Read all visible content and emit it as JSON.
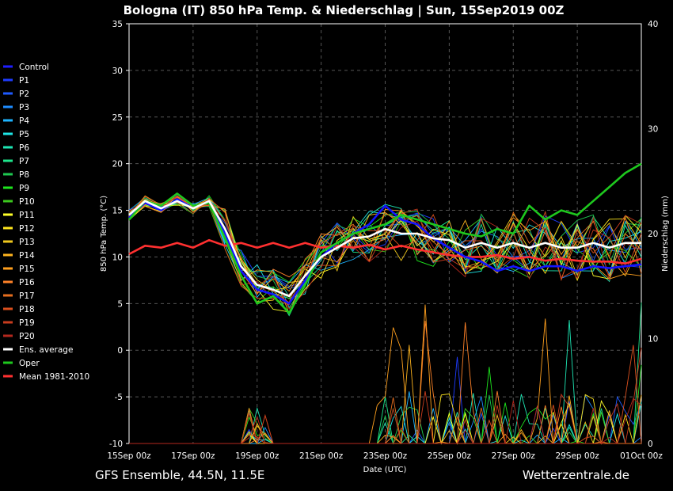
{
  "chart_data": {
    "type": "line",
    "title": "Bologna  (IT)  850 hPa Temp. & Niederschlag | Sun, 15Sep2019 00Z",
    "ylabel": "850 hPa Temp. (°C)",
    "y2label": "Niederschlag (mm)",
    "xlabel": "Date (UTC)",
    "ylim": [
      -10,
      35
    ],
    "y2lim": [
      0,
      40
    ],
    "yticks": [
      "35",
      "30",
      "25",
      "20",
      "15",
      "10",
      "5",
      "0",
      "-5",
      "-10"
    ],
    "y2ticks": [
      "40",
      "30",
      "20",
      "10",
      "0"
    ],
    "xticks": [
      "15Sep 00z",
      "17Sep 00z",
      "19Sep 00z",
      "21Sep 00z",
      "23Sep 00z",
      "25Sep 00z",
      "27Sep 00z",
      "29Sep 00z",
      "01Oct 00z"
    ],
    "xlim_days": [
      0,
      16
    ],
    "grid": true,
    "legend_position": "left",
    "footer_left": "GFS Ensemble, 44.5N, 11.5E",
    "footer_right": "Wetterzentrale.de",
    "key_series": {
      "oper": {
        "name": "Oper",
        "color": "#1ec81e",
        "x": [
          0,
          0.5,
          1,
          1.5,
          2,
          2.5,
          3,
          3.5,
          4,
          4.5,
          5,
          5.5,
          6,
          6.5,
          7,
          7.5,
          8,
          8.5,
          9,
          9.5,
          10,
          10.5,
          11,
          11.5,
          12,
          12.5,
          13,
          13.5,
          14,
          14.5,
          15,
          15.5,
          16
        ],
        "y": [
          14,
          16,
          15.5,
          16.8,
          15.5,
          15.8,
          12,
          8,
          5,
          5.8,
          4,
          7,
          10.5,
          11.5,
          12.5,
          13,
          13.5,
          14.5,
          14,
          13.5,
          13,
          12.5,
          12.2,
          13,
          12.5,
          15.5,
          14,
          15,
          14.5,
          16,
          17.5,
          19,
          20
        ]
      },
      "average": {
        "name": "Ens. average",
        "color": "#ffffff",
        "x": [
          0,
          0.5,
          1,
          1.5,
          2,
          2.5,
          3,
          3.5,
          4,
          4.5,
          5,
          5.5,
          6,
          6.5,
          7,
          7.5,
          8,
          8.5,
          9,
          9.5,
          10,
          10.5,
          11,
          11.5,
          12,
          12.5,
          13,
          13.5,
          14,
          14.5,
          15,
          15.5,
          16
        ],
        "y": [
          14.5,
          16,
          15.2,
          16,
          15.2,
          16,
          13,
          9,
          7,
          6.5,
          5.8,
          8,
          10,
          11,
          12,
          12.2,
          13,
          12.5,
          12.5,
          12,
          11.8,
          11,
          11.5,
          11,
          11.5,
          11,
          11.5,
          11,
          11,
          11.5,
          11,
          11.5,
          11.5
        ]
      },
      "climate": {
        "name": "Mean 1981-2010",
        "color": "#ff3030",
        "x": [
          0,
          0.5,
          1,
          1.5,
          2,
          2.5,
          3,
          3.5,
          4,
          4.5,
          5,
          5.5,
          6,
          6.5,
          7,
          7.5,
          8,
          8.5,
          9,
          9.5,
          10,
          10.5,
          11,
          11.5,
          12,
          12.5,
          13,
          13.5,
          14,
          14.5,
          15,
          15.5,
          16
        ],
        "y": [
          10.3,
          11.2,
          11,
          11.5,
          11,
          11.8,
          11.2,
          11.5,
          11,
          11.5,
          11,
          11.5,
          11,
          11.2,
          11,
          11.3,
          10.8,
          11.2,
          10.8,
          10.5,
          10.2,
          10,
          10,
          10.2,
          9.8,
          10,
          9.6,
          9.8,
          9.6,
          9.5,
          9.5,
          9.3,
          9.8
        ]
      },
      "control": {
        "name": "Control",
        "color": "#1414ff",
        "x": [
          0,
          0.5,
          1,
          1.5,
          2,
          2.5,
          3,
          3.5,
          4,
          4.5,
          5,
          5.5,
          6,
          6.5,
          7,
          7.5,
          8,
          8.5,
          9,
          9.5,
          10,
          10.5,
          11,
          11.5,
          12,
          12.5,
          13,
          13.5,
          14,
          14.5,
          15,
          15.5,
          16
        ],
        "y": [
          14.2,
          15.8,
          15,
          16.2,
          15.2,
          16,
          12.5,
          8.5,
          6.5,
          6,
          5,
          7.5,
          10,
          11.5,
          12.5,
          13.5,
          15.5,
          14,
          13.5,
          12,
          11,
          10,
          9.5,
          8.5,
          9,
          8.5,
          9,
          9,
          8.5,
          9,
          8.8,
          9,
          9.2
        ]
      }
    },
    "legend": [
      {
        "name": "Control",
        "color": "#1e1eff"
      },
      {
        "name": "P1",
        "color": "#1e3cff"
      },
      {
        "name": "P2",
        "color": "#1e5aff"
      },
      {
        "name": "P3",
        "color": "#1e8cff"
      },
      {
        "name": "P4",
        "color": "#1eb4ff"
      },
      {
        "name": "P5",
        "color": "#1ee6e6"
      },
      {
        "name": "P6",
        "color": "#1ee6b4"
      },
      {
        "name": "P7",
        "color": "#1ee68c"
      },
      {
        "name": "P8",
        "color": "#1ec850"
      },
      {
        "name": "P9",
        "color": "#1ee61e"
      },
      {
        "name": "P10",
        "color": "#3cc81e"
      },
      {
        "name": "P11",
        "color": "#ffff28"
      },
      {
        "name": "P12",
        "color": "#ffe61e"
      },
      {
        "name": "P13",
        "color": "#f0c81e"
      },
      {
        "name": "P14",
        "color": "#ffb41e"
      },
      {
        "name": "P15",
        "color": "#ffa01e"
      },
      {
        "name": "P16",
        "color": "#ff8228"
      },
      {
        "name": "P17",
        "color": "#e66e1e"
      },
      {
        "name": "P18",
        "color": "#dc501e"
      },
      {
        "name": "P19",
        "color": "#c83c1e"
      },
      {
        "name": "P20",
        "color": "#b4281e"
      },
      {
        "name": "Ens. average",
        "color": "#ffffff"
      },
      {
        "name": "Oper",
        "color": "#1ec81e"
      },
      {
        "name": "Mean 1981-2010",
        "color": "#ff3030"
      }
    ]
  }
}
